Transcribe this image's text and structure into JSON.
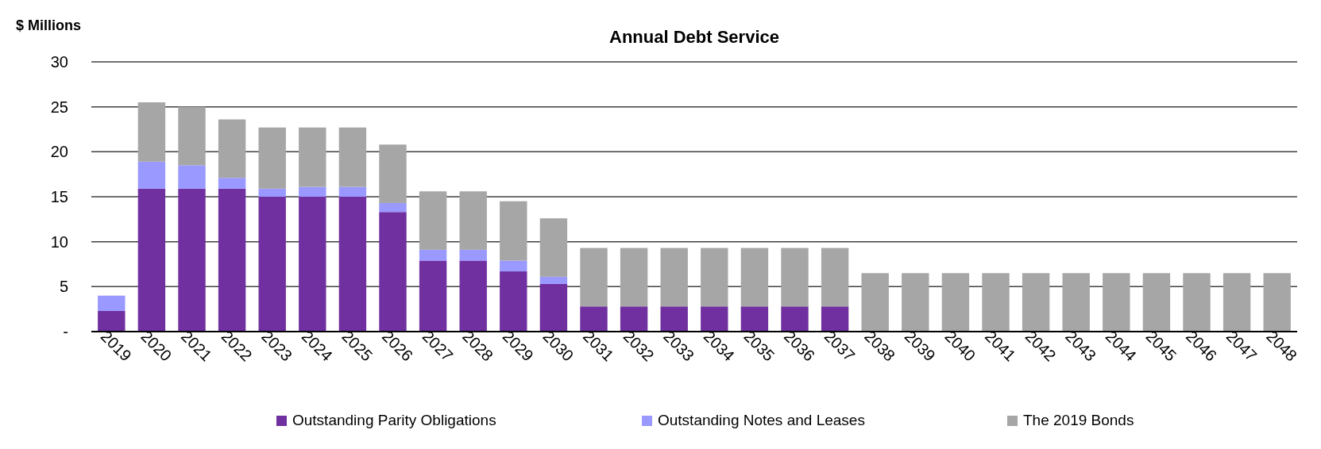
{
  "chart_data": {
    "type": "bar",
    "title": "Annual Debt Service",
    "ylabel": "$ Millions",
    "stacked": true,
    "categories": [
      "2019",
      "2020",
      "2021",
      "2022",
      "2023",
      "2024",
      "2025",
      "2026",
      "2027",
      "2028",
      "2029",
      "2030",
      "2031",
      "2032",
      "2033",
      "2034",
      "2035",
      "2036",
      "2037",
      "2038",
      "2039",
      "2040",
      "2041",
      "2042",
      "2043",
      "2044",
      "2045",
      "2046",
      "2047",
      "2048"
    ],
    "series": [
      {
        "name": "Outstanding Parity Obligations",
        "color": "#7030a0",
        "values": [
          2.3,
          15.9,
          15.9,
          15.9,
          15.0,
          15.0,
          15.0,
          13.3,
          7.9,
          7.9,
          6.7,
          5.3,
          2.8,
          2.8,
          2.8,
          2.8,
          2.8,
          2.8,
          2.8,
          0,
          0,
          0,
          0,
          0,
          0,
          0,
          0,
          0,
          0,
          0
        ]
      },
      {
        "name": "Outstanding Notes and Leases",
        "color": "#9999ff",
        "values": [
          1.7,
          3.0,
          2.6,
          1.2,
          0.9,
          1.1,
          1.1,
          1.0,
          1.2,
          1.2,
          1.2,
          0.8,
          0,
          0,
          0,
          0,
          0,
          0,
          0,
          0,
          0,
          0,
          0,
          0,
          0,
          0,
          0,
          0,
          0,
          0
        ]
      },
      {
        "name": "The 2019 Bonds",
        "color": "#a6a6a6",
        "values": [
          0,
          6.6,
          6.5,
          6.5,
          6.8,
          6.6,
          6.6,
          6.5,
          6.5,
          6.5,
          6.6,
          6.5,
          6.5,
          6.5,
          6.5,
          6.5,
          6.5,
          6.5,
          6.5,
          6.5,
          6.5,
          6.5,
          6.5,
          6.5,
          6.5,
          6.5,
          6.5,
          6.5,
          6.5,
          6.5
        ]
      }
    ],
    "ylim": [
      0,
      30
    ],
    "yticks": [
      {
        "value": 0,
        "label": "-"
      },
      5,
      10,
      15,
      20,
      25,
      30
    ],
    "grid": "y",
    "legend": "bottom"
  }
}
